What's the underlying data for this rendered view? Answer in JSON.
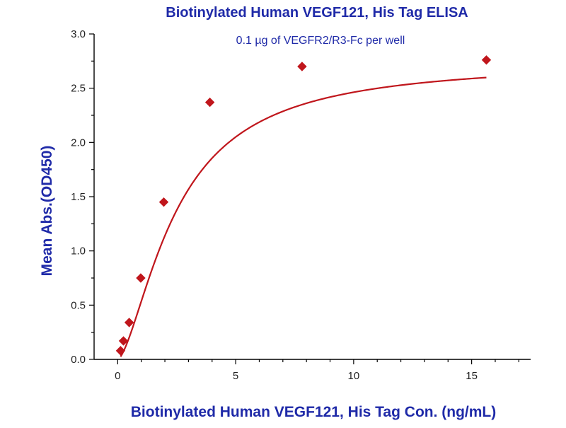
{
  "chart_data": {
    "type": "scatter",
    "title": "Biotinylated Human VEGF121, His Tag ELISA",
    "subtitle": "0.1 µg of VEGFR2/R3-Fc per well",
    "xlabel": "Biotinylated Human VEGF121, His Tag Con. (ng/mL)",
    "ylabel": "Mean Abs.(OD450)",
    "xlim": [
      -1,
      17.5
    ],
    "ylim": [
      0,
      3.0
    ],
    "x_ticks": [
      "0",
      "5",
      "10",
      "15"
    ],
    "y_ticks": [
      "0.0",
      "0.5",
      "1.0",
      "1.5",
      "2.0",
      "2.5",
      "3.0"
    ],
    "grid": false,
    "series": [
      {
        "points": [
          {
            "x": 0.122,
            "y": 0.08
          },
          {
            "x": 0.244,
            "y": 0.17
          },
          {
            "x": 0.488,
            "y": 0.34
          },
          {
            "x": 0.977,
            "y": 0.75
          },
          {
            "x": 1.953,
            "y": 1.45
          },
          {
            "x": 3.906,
            "y": 2.37
          },
          {
            "x": 7.813,
            "y": 2.7
          },
          {
            "x": 15.625,
            "y": 2.76
          }
        ],
        "fit": "four-parameter logistic",
        "color": "#c0161c"
      }
    ],
    "colors": {
      "text": "#1f2aa8",
      "series": "#c0161c",
      "axis": "#000000"
    }
  }
}
